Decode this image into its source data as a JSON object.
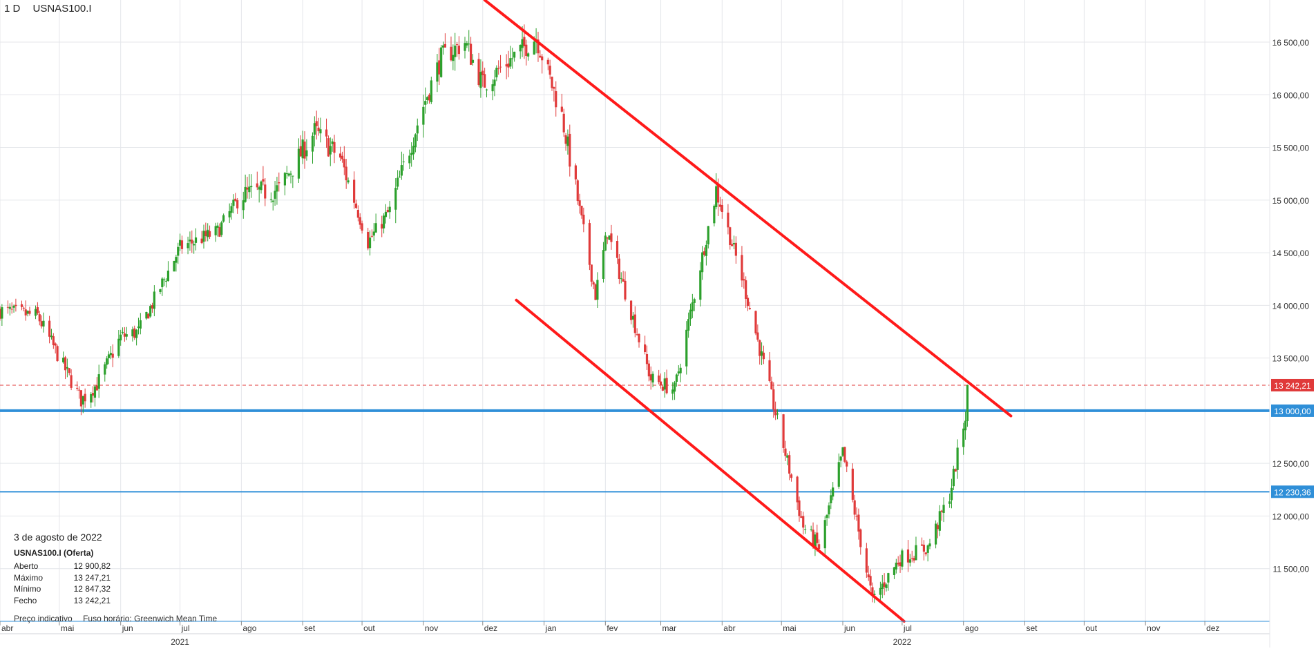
{
  "header": {
    "timeframe": "1 D",
    "symbol": "USNAS100.I"
  },
  "info_box": {
    "date": "3 de agosto de 2022",
    "instrument": "USNAS100.I (Oferta)",
    "rows": [
      {
        "label": "Aberto",
        "value": "12 900,82"
      },
      {
        "label": "Máximo",
        "value": "13 247,21"
      },
      {
        "label": "Mínimo",
        "value": "12 847,32"
      },
      {
        "label": "Fecho",
        "value": "13 242,21"
      }
    ]
  },
  "footnote": {
    "price_note": "Preço indicativo",
    "timezone_note": "Fuso horário: Greenwich Mean Time"
  },
  "colors": {
    "up": "#2ca02c",
    "down": "#e03a3a",
    "trend": "#ff1a1a",
    "level": "#2f8fd8",
    "last_price": "#e03a3a",
    "grid": "#e4e6ea"
  },
  "chart_data": {
    "type": "candlestick",
    "y_axis": {
      "min": 11000,
      "max": 16900,
      "ticks": [
        11500,
        12000,
        12500,
        13000,
        13500,
        14000,
        14500,
        15000,
        15500,
        16000,
        16500
      ],
      "tick_labels": [
        "11 500,00",
        "12 000,00",
        "12 500,00",
        "13 000,00",
        "13 500,00",
        "14 000,00",
        "14 500,00",
        "15 000,00",
        "15 500,00",
        "16 000,00",
        "16 500,00"
      ]
    },
    "x_axis": {
      "start": "2021-04-01",
      "end": "2022-12-31",
      "month_ticks": [
        {
          "date": "2021-04-01",
          "label": "abr"
        },
        {
          "date": "2021-05-01",
          "label": "mai"
        },
        {
          "date": "2021-06-01",
          "label": "jun"
        },
        {
          "date": "2021-07-01",
          "label": "jul"
        },
        {
          "date": "2021-08-01",
          "label": "ago"
        },
        {
          "date": "2021-09-01",
          "label": "set"
        },
        {
          "date": "2021-10-01",
          "label": "out"
        },
        {
          "date": "2021-11-01",
          "label": "nov"
        },
        {
          "date": "2021-12-01",
          "label": "dez"
        },
        {
          "date": "2022-01-01",
          "label": "jan"
        },
        {
          "date": "2022-02-01",
          "label": "fev"
        },
        {
          "date": "2022-03-01",
          "label": "mar"
        },
        {
          "date": "2022-04-01",
          "label": "abr"
        },
        {
          "date": "2022-05-01",
          "label": "mai"
        },
        {
          "date": "2022-06-01",
          "label": "jun"
        },
        {
          "date": "2022-07-01",
          "label": "jul"
        },
        {
          "date": "2022-08-01",
          "label": "ago"
        },
        {
          "date": "2022-09-01",
          "label": "set"
        },
        {
          "date": "2022-10-01",
          "label": "out"
        },
        {
          "date": "2022-11-01",
          "label": "nov"
        },
        {
          "date": "2022-12-01",
          "label": "dez"
        }
      ],
      "year_labels": [
        {
          "date": "2021-07-01",
          "label": "2021"
        },
        {
          "date": "2022-07-01",
          "label": "2022"
        }
      ]
    },
    "grid": true,
    "price_anchors": [
      [
        "2021-04-01",
        13950
      ],
      [
        "2021-04-20",
        13900
      ],
      [
        "2021-05-12",
        13100
      ],
      [
        "2021-05-20",
        13250
      ],
      [
        "2021-06-01",
        13700
      ],
      [
        "2021-06-10",
        13750
      ],
      [
        "2021-07-01",
        14550
      ],
      [
        "2021-07-20",
        14700
      ],
      [
        "2021-08-01",
        15050
      ],
      [
        "2021-08-20",
        15100
      ],
      [
        "2021-09-07",
        15650
      ],
      [
        "2021-09-20",
        15400
      ],
      [
        "2021-10-04",
        14600
      ],
      [
        "2021-10-15",
        14900
      ],
      [
        "2021-11-01",
        15900
      ],
      [
        "2021-11-10",
        16350
      ],
      [
        "2021-11-22",
        16500
      ],
      [
        "2021-12-01",
        16100
      ],
      [
        "2021-12-10",
        16250
      ],
      [
        "2021-12-28",
        16550
      ],
      [
        "2022-01-10",
        15800
      ],
      [
        "2022-01-27",
        14100
      ],
      [
        "2022-02-02",
        14700
      ],
      [
        "2022-02-24",
        13300
      ],
      [
        "2022-03-08",
        13200
      ],
      [
        "2022-03-29",
        15100
      ],
      [
        "2022-04-12",
        14200
      ],
      [
        "2022-04-29",
        12900
      ],
      [
        "2022-05-12",
        11900
      ],
      [
        "2022-05-20",
        11700
      ],
      [
        "2022-06-01",
        12600
      ],
      [
        "2022-06-16",
        11200
      ],
      [
        "2022-06-30",
        11600
      ],
      [
        "2022-07-14",
        11700
      ],
      [
        "2022-07-25",
        12200
      ],
      [
        "2022-08-02",
        12950
      ],
      [
        "2022-08-03",
        13242.21
      ]
    ],
    "last_candle": {
      "date": "2022-08-03",
      "open": 12900.82,
      "high": 13247.21,
      "low": 12847.32,
      "close": 13242.21
    },
    "horizontal_lines": [
      {
        "price": 13242.21,
        "label": "13 242,21",
        "style": "dashed",
        "color": "#e03a3a"
      },
      {
        "price": 13000.0,
        "label": "13 000,00",
        "style": "thick",
        "color": "#2f8fd8"
      },
      {
        "price": 12230.36,
        "label": "12 230,36",
        "style": "solid",
        "color": "#2f8fd8"
      }
    ],
    "trendlines": [
      {
        "from": [
          "2021-12-02",
          16900
        ],
        "to": [
          "2022-08-25",
          12950
        ]
      },
      {
        "from": [
          "2021-12-18",
          14050
        ],
        "to": [
          "2022-07-02",
          11000
        ]
      }
    ]
  }
}
